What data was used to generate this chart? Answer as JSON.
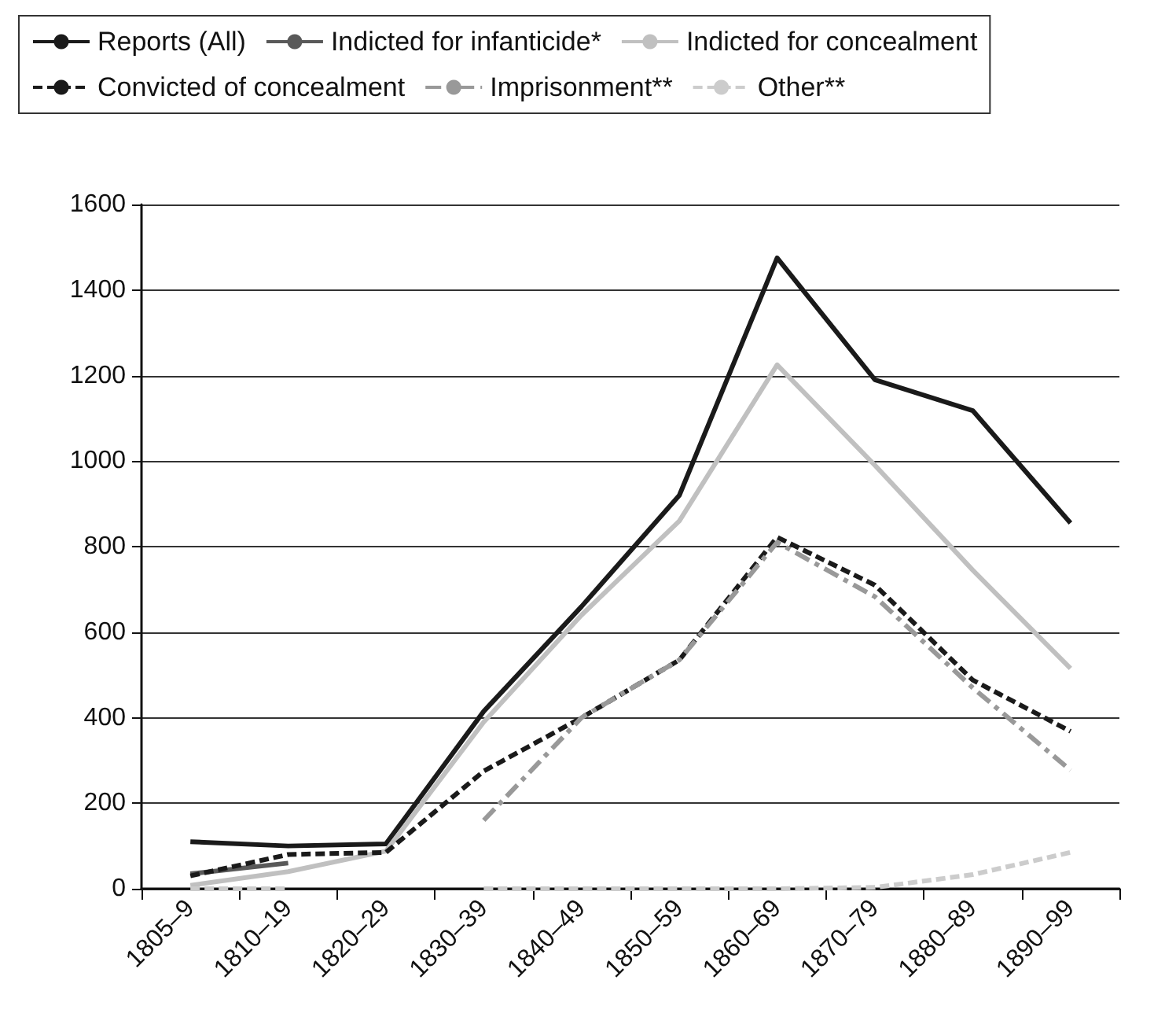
{
  "chart_data": {
    "type": "line",
    "categories": [
      "1805–9",
      "1810–19",
      "1820–29",
      "1830–39",
      "1840–49",
      "1850–59",
      "1860–69",
      "1870–79",
      "1880–89",
      "1890–99"
    ],
    "series": [
      {
        "name": "Reports (All)",
        "color": "#1a1a1a",
        "line_style": "solid",
        "values": [
          110,
          100,
          105,
          415,
          660,
          920,
          1475,
          1190,
          1118,
          855
        ]
      },
      {
        "name": "Indicted for infanticide*",
        "color": "#595959",
        "line_style": "solid",
        "values": [
          35,
          60,
          null,
          null,
          null,
          null,
          null,
          null,
          null,
          null
        ]
      },
      {
        "name": "Indicted for concealment",
        "color": "#c0c0c0",
        "line_style": "solid",
        "values": [
          8,
          40,
          88,
          390,
          640,
          860,
          1225,
          990,
          745,
          515
        ]
      },
      {
        "name": "Convicted of concealment",
        "color": "#1a1a1a",
        "line_style": "dashed",
        "values": [
          30,
          80,
          85,
          275,
          400,
          535,
          822,
          710,
          488,
          368
        ]
      },
      {
        "name": "Imprisonment**",
        "color": "#999999",
        "line_style": "dashdot",
        "values": [
          null,
          null,
          null,
          160,
          400,
          535,
          810,
          683,
          470,
          277
        ]
      },
      {
        "name": "Other**",
        "color": "#cccccc",
        "line_style": "dashed",
        "values": [
          0,
          0,
          null,
          0,
          0,
          0,
          0,
          3,
          33,
          85
        ]
      }
    ],
    "ylim": [
      0,
      1600
    ],
    "yticks": [
      0,
      200,
      400,
      600,
      800,
      1000,
      1200,
      1400,
      1600
    ],
    "grid": "y",
    "legend": "top",
    "marker": "none"
  }
}
